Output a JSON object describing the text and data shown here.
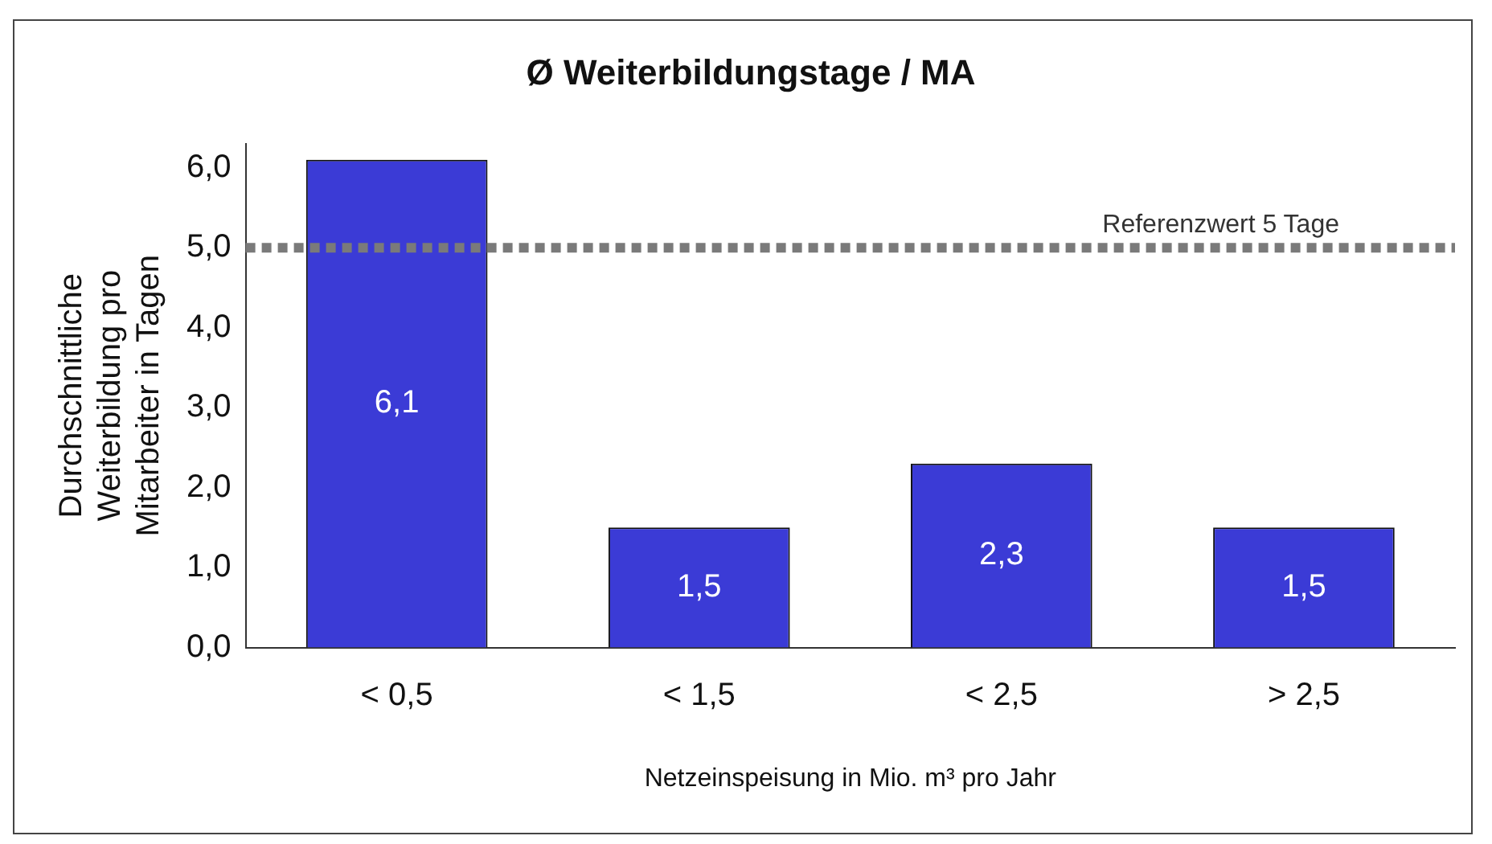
{
  "chart_data": {
    "type": "bar",
    "title": "Ø Weiterbildungstage / MA",
    "categories": [
      "< 0,5",
      "< 1,5",
      "< 2,5",
      "> 2,5"
    ],
    "values": [
      6.1,
      1.5,
      2.3,
      1.5
    ],
    "value_labels": [
      "6,1",
      "1,5",
      "2,3",
      "1,5"
    ],
    "color": "#3b3bd6",
    "ylabel": "Durchschnittliche Weiterbildung pro Mitarbeiter in Tagen",
    "xlabel": "Netzeinspeisung in Mio. m³ pro Jahr",
    "ylim": [
      0,
      6.3
    ],
    "yticks": [
      {
        "value": 0,
        "label": "0,0"
      },
      {
        "value": 1,
        "label": "1,0"
      },
      {
        "value": 2,
        "label": "2,0"
      },
      {
        "value": 3,
        "label": "3,0"
      },
      {
        "value": 4,
        "label": "4,0"
      },
      {
        "value": 5,
        "label": "5,0"
      },
      {
        "value": 6,
        "label": "6,0"
      }
    ],
    "ref_lines": [
      {
        "axis": "y",
        "value": 5,
        "label": "Referenzwert 5 Tage",
        "color": "#7a7a7a",
        "line_style": "dotted"
      }
    ],
    "grid": false,
    "legend": false
  }
}
